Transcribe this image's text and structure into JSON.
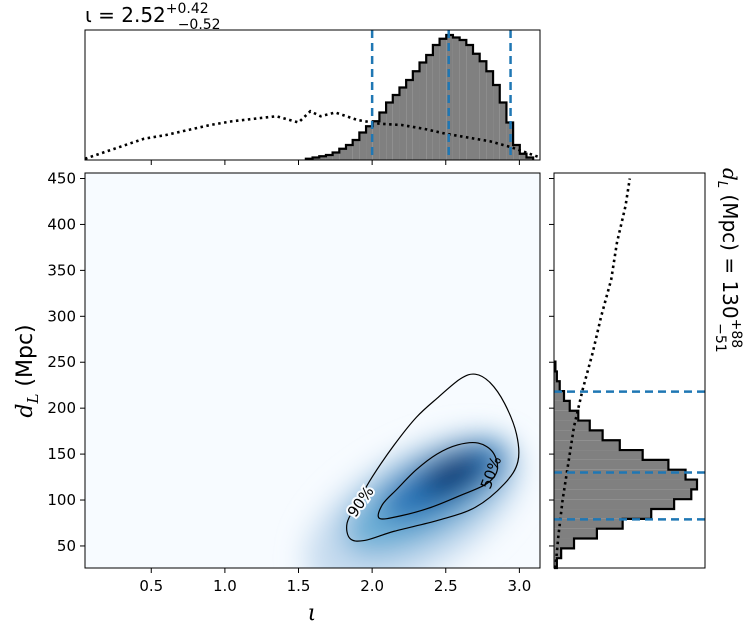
{
  "chart_data": [
    {
      "type": "histogram",
      "panel": "top-marginal",
      "title": {
        "base": "ι = 2.52",
        "sup": "+0.42",
        "sub": "−0.52"
      },
      "xlim": [
        0.05,
        3.14
      ],
      "median": 2.52,
      "lower": 2.0,
      "upper": 2.94,
      "posterior_bins": {
        "start": 1.55,
        "width": 0.0454,
        "heights": [
          0.01,
          0.02,
          0.03,
          0.04,
          0.06,
          0.09,
          0.12,
          0.16,
          0.22,
          0.27,
          0.31,
          0.38,
          0.46,
          0.52,
          0.58,
          0.64,
          0.71,
          0.78,
          0.84,
          0.92,
          0.97,
          1.0,
          0.98,
          0.96,
          0.92,
          0.85,
          0.79,
          0.71,
          0.6,
          0.46,
          0.3,
          0.12,
          0.05,
          0.02
        ]
      },
      "prior_curve": {
        "x": [
          0.05,
          0.15,
          0.3,
          0.45,
          0.6,
          0.75,
          0.9,
          1.05,
          1.2,
          1.35,
          1.5,
          1.58,
          1.65,
          1.75,
          1.9,
          2.05,
          2.2,
          2.35,
          2.5,
          2.65,
          2.8,
          2.95,
          3.14
        ],
        "y": [
          0.01,
          0.05,
          0.11,
          0.17,
          0.2,
          0.24,
          0.28,
          0.31,
          0.33,
          0.35,
          0.3,
          0.39,
          0.35,
          0.38,
          0.32,
          0.29,
          0.28,
          0.25,
          0.21,
          0.18,
          0.15,
          0.1,
          0.02
        ]
      }
    },
    {
      "type": "heatmap",
      "panel": "joint",
      "xlabel": "ι",
      "ylabel": {
        "base": "d",
        "sub": "L",
        "unit": " (Mpc)"
      },
      "xlim": [
        0.05,
        3.14
      ],
      "ylim": [
        26,
        456
      ],
      "xticks": [
        0.5,
        1.0,
        1.5,
        2.0,
        2.5,
        3.0
      ],
      "xtick_labels": [
        "0.5",
        "1.0",
        "1.5",
        "2.0",
        "2.5",
        "3.0"
      ],
      "yticks": [
        50,
        100,
        150,
        200,
        250,
        300,
        350,
        400,
        450
      ],
      "ytick_labels": [
        "50",
        "100",
        "150",
        "200",
        "250",
        "300",
        "350",
        "400",
        "450"
      ],
      "density_peak": {
        "x": 2.55,
        "y": 128
      },
      "contours": [
        {
          "label": "90%",
          "points": [
            [
              1.85,
              58
            ],
            [
              1.95,
              56
            ],
            [
              2.15,
              66
            ],
            [
              2.45,
              78
            ],
            [
              2.7,
              92
            ],
            [
              2.9,
              118
            ],
            [
              2.99,
              142
            ],
            [
              2.98,
              172
            ],
            [
              2.9,
              205
            ],
            [
              2.8,
              228
            ],
            [
              2.7,
              237
            ],
            [
              2.6,
              232
            ],
            [
              2.45,
              212
            ],
            [
              2.3,
              190
            ],
            [
              2.15,
              160
            ],
            [
              2.0,
              125
            ],
            [
              1.9,
              97
            ],
            [
              1.83,
              75
            ]
          ]
        },
        {
          "label": "50%",
          "points": [
            [
              2.05,
              80
            ],
            [
              2.2,
              83
            ],
            [
              2.4,
              92
            ],
            [
              2.6,
              105
            ],
            [
              2.78,
              118
            ],
            [
              2.85,
              133
            ],
            [
              2.82,
              152
            ],
            [
              2.72,
              162
            ],
            [
              2.58,
              160
            ],
            [
              2.44,
              150
            ],
            [
              2.3,
              133
            ],
            [
              2.17,
              112
            ],
            [
              2.07,
              95
            ]
          ]
        }
      ]
    },
    {
      "type": "histogram",
      "panel": "right-marginal",
      "orientation": "horizontal",
      "title": {
        "base": "d",
        "sub_l": "L",
        "mid": " (Mpc) = 130",
        "sup": "+88",
        "sub": "−51"
      },
      "ylim": [
        26,
        456
      ],
      "median": 130,
      "lower": 79,
      "upper": 218,
      "posterior_bins": {
        "start": 26,
        "width": 10.7,
        "heights": [
          0.02,
          0.05,
          0.14,
          0.3,
          0.48,
          0.68,
          0.84,
          0.96,
          1.0,
          0.92,
          0.8,
          0.62,
          0.46,
          0.34,
          0.25,
          0.17,
          0.11,
          0.07,
          0.04,
          0.02,
          0.01
        ]
      },
      "prior_curve": {
        "y": [
          26,
          60,
          100,
          140,
          180,
          220,
          260,
          300,
          340,
          380,
          420,
          450
        ],
        "x": [
          0.01,
          0.03,
          0.06,
          0.1,
          0.14,
          0.2,
          0.27,
          0.33,
          0.4,
          0.44,
          0.5,
          0.53
        ]
      }
    }
  ]
}
